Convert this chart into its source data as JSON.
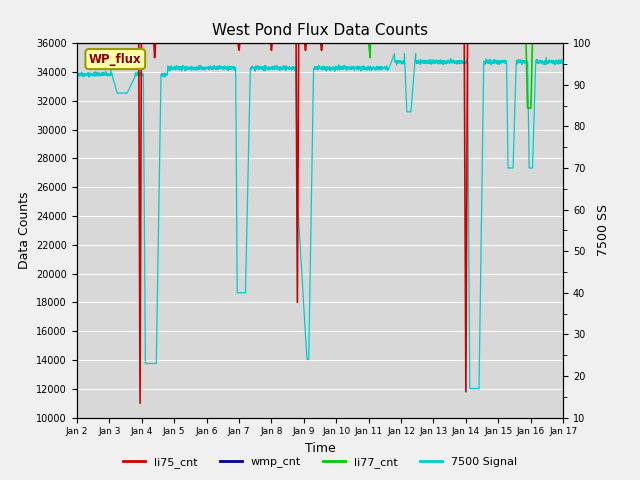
{
  "title": "West Pond Flux Data Counts",
  "xlabel": "Time",
  "ylabel_left": "Data Counts",
  "ylabel_right": "7500 SS",
  "ylim_left": [
    10000,
    36000
  ],
  "ylim_right": [
    10,
    100
  ],
  "fig_facecolor": "#f0f0f0",
  "plot_bg_color": "#d8d8d8",
  "legend_labels": [
    "li75_cnt",
    "wmp_cnt",
    "li77_cnt",
    "7500 Signal"
  ],
  "legend_colors": [
    "#cc0000",
    "#000099",
    "#00cc00",
    "#00cccc"
  ],
  "annotation_box_text": "WP_flux",
  "annotation_box_facecolor": "#ffffaa",
  "annotation_box_edgecolor": "#999900",
  "annotation_box_textcolor": "#880000",
  "x_tick_labels": [
    "Jan 2",
    "Jan 3",
    "Jan 4",
    "Jan 5",
    "Jan 6",
    "Jan 7",
    "Jan 8",
    "Jan 9",
    "Jan 10",
    "Jan 11",
    "Jan 12",
    "Jan 13",
    "Jan 14",
    "Jan 15",
    "Jan 16",
    "Jan 17"
  ],
  "li77_color": "#00cc00",
  "li75_color": "#cc0000",
  "wmp_color": "#000099",
  "signal_color": "#00cccc",
  "yticks_left": [
    10000,
    12000,
    14000,
    16000,
    18000,
    20000,
    22000,
    24000,
    26000,
    28000,
    30000,
    32000,
    34000,
    36000
  ],
  "yticks_right": [
    10,
    20,
    30,
    40,
    50,
    60,
    70,
    80,
    90,
    100
  ]
}
